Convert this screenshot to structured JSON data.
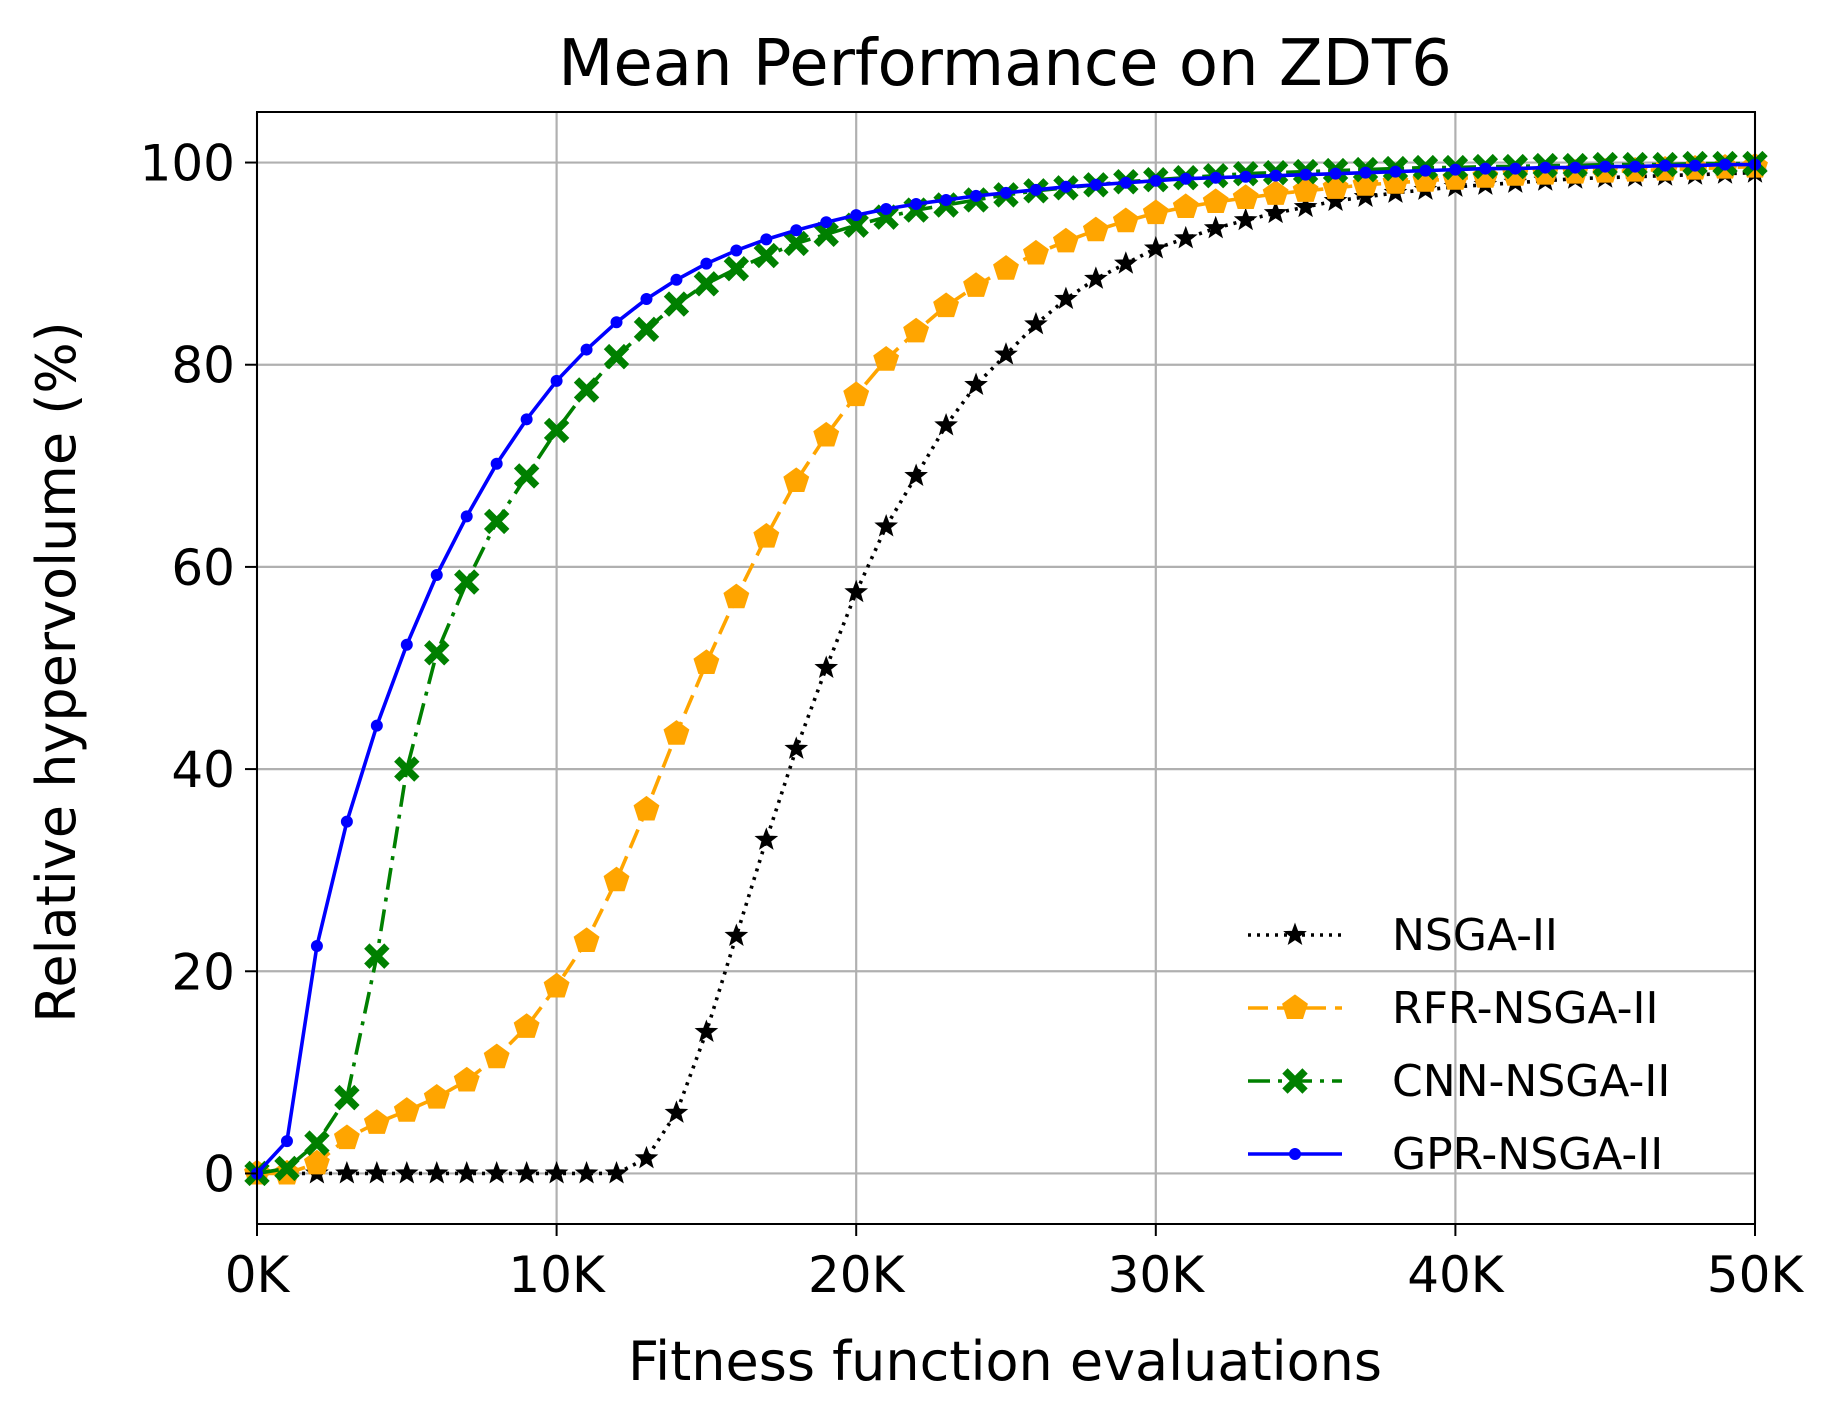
{
  "chart_data": {
    "type": "line",
    "title": "Mean Performance on ZDT6",
    "xlabel": "Fitness function evaluations",
    "ylabel": "Relative hypervolume (%)",
    "xlim": [
      0,
      50
    ],
    "ylim": [
      -5,
      105
    ],
    "x_unit": "K",
    "x_ticks": [
      0,
      10,
      20,
      30,
      40,
      50
    ],
    "x_tick_labels": [
      "0K",
      "10K",
      "20K",
      "30K",
      "40K",
      "50K"
    ],
    "y_ticks": [
      0,
      20,
      40,
      60,
      80,
      100
    ],
    "y_tick_labels": [
      "0",
      "20",
      "40",
      "60",
      "80",
      "100"
    ],
    "grid": true,
    "legend_position": "lower-right",
    "x": [
      0,
      1,
      2,
      3,
      4,
      5,
      6,
      7,
      8,
      9,
      10,
      11,
      12,
      13,
      14,
      15,
      16,
      17,
      18,
      19,
      20,
      21,
      22,
      23,
      24,
      25,
      26,
      27,
      28,
      29,
      30,
      31,
      32,
      33,
      34,
      35,
      36,
      37,
      38,
      39,
      40,
      41,
      42,
      43,
      44,
      45,
      46,
      47,
      48,
      49,
      50
    ],
    "series": [
      {
        "name": "NSGA-II",
        "color": "#000000",
        "line_style": "dotted",
        "marker": "star",
        "values": [
          0,
          0,
          0,
          0,
          0,
          0,
          0,
          0,
          0,
          0,
          0,
          0,
          0,
          1.5,
          6,
          14,
          23.5,
          33,
          42,
          50,
          57.5,
          64,
          69,
          74,
          78,
          81,
          84,
          86.5,
          88.5,
          90,
          91.5,
          92.5,
          93.5,
          94.3,
          95,
          95.6,
          96.2,
          96.6,
          97,
          97.3,
          97.6,
          97.8,
          98,
          98.2,
          98.4,
          98.5,
          98.6,
          98.7,
          98.8,
          98.9,
          99
        ]
      },
      {
        "name": "RFR-NSGA-II",
        "color": "#ffa500",
        "line_style": "dashed",
        "marker": "pentagon",
        "values": [
          0,
          0,
          1,
          3.5,
          5,
          6.2,
          7.5,
          9.2,
          11.5,
          14.5,
          18.5,
          23,
          29,
          36,
          43.5,
          50.5,
          57,
          63,
          68.5,
          73,
          77,
          80.5,
          83.3,
          85.8,
          87.8,
          89.5,
          91,
          92.2,
          93.3,
          94.2,
          95,
          95.6,
          96.1,
          96.5,
          96.9,
          97.2,
          97.5,
          97.8,
          98,
          98.2,
          98.4,
          98.6,
          98.8,
          98.9,
          99,
          99.1,
          99.2,
          99.3,
          99.4,
          99.5,
          99.6
        ]
      },
      {
        "name": "CNN-NSGA-II",
        "color": "#008000",
        "line_style": "dashdot",
        "marker": "x",
        "values": [
          0,
          0.5,
          3,
          7.5,
          21.5,
          40,
          51.5,
          58.5,
          64.5,
          69,
          73.5,
          77.5,
          80.8,
          83.5,
          86,
          88,
          89.5,
          90.8,
          92,
          92.9,
          93.8,
          94.6,
          95.3,
          95.8,
          96.3,
          96.8,
          97.2,
          97.5,
          97.8,
          98.1,
          98.3,
          98.5,
          98.7,
          98.9,
          99,
          99.1,
          99.2,
          99.3,
          99.4,
          99.5,
          99.5,
          99.6,
          99.6,
          99.7,
          99.7,
          99.8,
          99.8,
          99.8,
          99.9,
          99.9,
          99.9
        ]
      },
      {
        "name": "GPR-NSGA-II",
        "color": "#0000ff",
        "line_style": "solid",
        "marker": "dot",
        "values": [
          0,
          3.2,
          22.5,
          34.8,
          44.3,
          52.3,
          59.2,
          65,
          70.2,
          74.6,
          78.4,
          81.5,
          84.2,
          86.5,
          88.4,
          90,
          91.3,
          92.4,
          93.3,
          94.1,
          94.8,
          95.4,
          95.9,
          96.3,
          96.7,
          97,
          97.3,
          97.6,
          97.8,
          98,
          98.2,
          98.4,
          98.5,
          98.6,
          98.7,
          98.8,
          98.9,
          99,
          99.1,
          99.2,
          99.3,
          99.4,
          99.4,
          99.5,
          99.5,
          99.6,
          99.6,
          99.7,
          99.7,
          99.8,
          99.8
        ]
      }
    ]
  }
}
